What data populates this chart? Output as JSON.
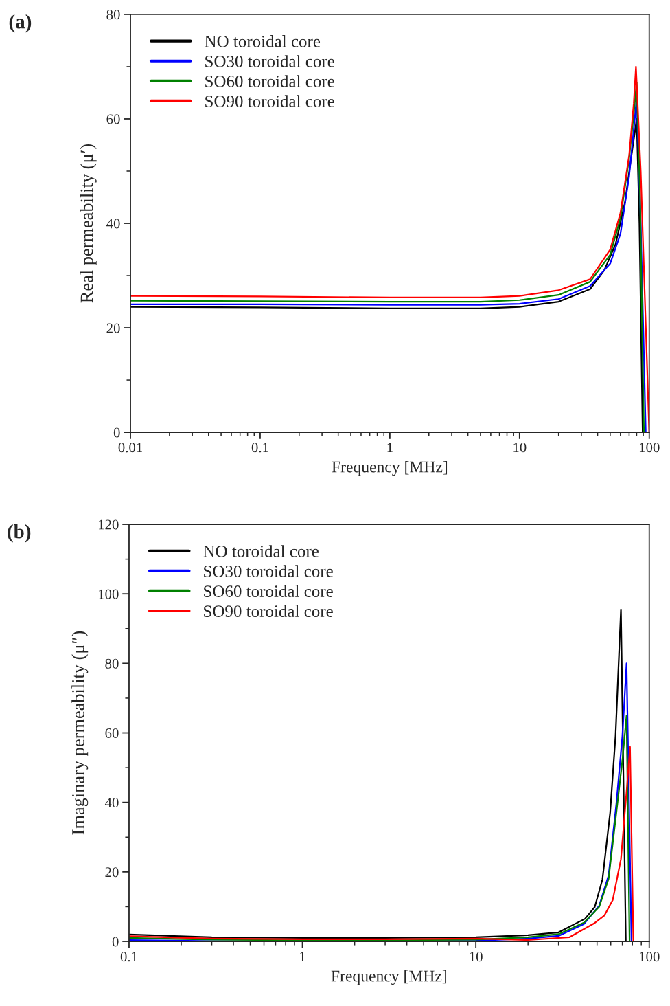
{
  "chart_data": [
    {
      "type": "line",
      "title": "(a)",
      "xlabel": "Frequency [MHz]",
      "ylabel": "Real permeability (μ′)",
      "log": "x",
      "xlim": [
        0.01,
        100
      ],
      "xticks": [
        0.01,
        0.1,
        1,
        10,
        100
      ],
      "ylim": [
        0,
        80
      ],
      "yticks": [
        0,
        20,
        40,
        60,
        80
      ],
      "legend": "top left",
      "grid": false,
      "series": [
        {
          "name": "NO toroidal core",
          "color": "#000000",
          "x": [
            0.01,
            0.1,
            1,
            5,
            10,
            20,
            35,
            45,
            55,
            65,
            72,
            78,
            80,
            84,
            89
          ],
          "values": [
            24.0,
            23.9,
            23.7,
            23.7,
            24.0,
            25.0,
            27.4,
            31,
            36,
            44,
            52,
            58,
            60,
            40,
            0
          ]
        },
        {
          "name": "SO30 toroidal core",
          "color": "#0000ff",
          "x": [
            0.01,
            0.1,
            1,
            5,
            10,
            20,
            35,
            50,
            60,
            70,
            76,
            80,
            86,
            94
          ],
          "values": [
            24.5,
            24.5,
            24.4,
            24.4,
            24.6,
            25.5,
            28.0,
            32.3,
            38,
            49,
            58,
            64,
            40,
            0
          ]
        },
        {
          "name": "SO60 toroidal core",
          "color": "#008000",
          "x": [
            0.01,
            0.1,
            1,
            5,
            10,
            20,
            35,
            50,
            60,
            70,
            76,
            80,
            85,
            91
          ],
          "values": [
            25.2,
            25.1,
            25.0,
            25.0,
            25.3,
            26.3,
            28.8,
            34,
            41,
            52.5,
            61,
            67,
            45,
            0
          ]
        },
        {
          "name": "SO90 toroidal core",
          "color": "#ff0000",
          "x": [
            0.01,
            0.1,
            1,
            5,
            10,
            20,
            35,
            50,
            60,
            70,
            76,
            79,
            86,
            100
          ],
          "values": [
            26.1,
            26.0,
            25.8,
            25.8,
            26.1,
            27.2,
            29.3,
            35,
            42,
            53,
            63,
            70,
            50,
            0
          ]
        }
      ]
    },
    {
      "type": "line",
      "title": "(b)",
      "xlabel": "Frequency [MHz]",
      "ylabel": "Imaginary permeability (μ″)",
      "log": "x",
      "xlim": [
        0.1,
        100
      ],
      "xticks": [
        0.1,
        1,
        10,
        100
      ],
      "ylim": [
        0,
        120
      ],
      "yticks": [
        0,
        20,
        40,
        60,
        80,
        100,
        120
      ],
      "legend": "top left",
      "grid": false,
      "series": [
        {
          "name": "NO toroidal core",
          "color": "#000000",
          "x": [
            0.1,
            0.3,
            1,
            3,
            10,
            20,
            30,
            42.6,
            48.5,
            53.7,
            59.5,
            63.9,
            68.7,
            73.3
          ],
          "values": [
            2.0,
            1.2,
            1.0,
            1.0,
            1.2,
            1.8,
            2.6,
            6.5,
            9.9,
            17.8,
            37,
            59,
            95.5,
            0
          ]
        },
        {
          "name": "SO30 toroidal core",
          "color": "#0000ff",
          "x": [
            0.1,
            0.3,
            1,
            3,
            10,
            20,
            30,
            42,
            51.5,
            58.3,
            64.6,
            70,
            74,
            79
          ],
          "values": [
            0.4,
            0.1,
            0.0,
            0.0,
            0.2,
            0.8,
            1.6,
            5,
            10.3,
            19,
            39.5,
            59,
            80,
            0
          ]
        },
        {
          "name": "SO60 toroidal core",
          "color": "#008000",
          "x": [
            0.1,
            0.3,
            1,
            3,
            10,
            20,
            30,
            42,
            51.5,
            58.3,
            64.6,
            70,
            74,
            77
          ],
          "values": [
            1.0,
            0.5,
            0.3,
            0.3,
            0.5,
            1.2,
            2.1,
            5.4,
            10,
            18,
            37,
            52,
            65,
            0
          ]
        },
        {
          "name": "SO90 toroidal core",
          "color": "#ff0000",
          "x": [
            0.1,
            0.3,
            1,
            3,
            10,
            20,
            34.6,
            48.5,
            55.2,
            61.6,
            68.7,
            74,
            77.5,
            81
          ],
          "values": [
            1.5,
            0.8,
            0.6,
            0.6,
            0.8,
            0.4,
            1.2,
            5.3,
            7.5,
            11.9,
            23.7,
            43,
            56,
            0
          ]
        }
      ]
    }
  ]
}
